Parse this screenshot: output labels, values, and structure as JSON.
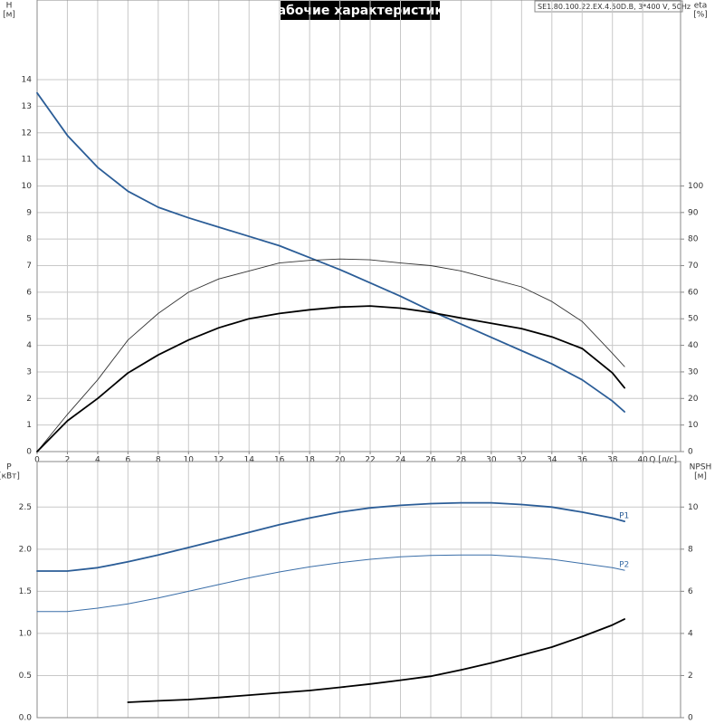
{
  "title": "Рабочие характеристики",
  "product": "SE1.80.100.22.EX.4.50D.B, 3*400 V, 50Hz",
  "chart_data": [
    {
      "type": "line",
      "ylabel": [
        "H",
        "[м]"
      ],
      "y2label": [
        "eta",
        "[%]"
      ],
      "xlabel": "Q [л/с]",
      "x": [
        0,
        2,
        4,
        6,
        8,
        10,
        12,
        14,
        16,
        18,
        20,
        22,
        24,
        26,
        28,
        30,
        32,
        34,
        36,
        38,
        38.8
      ],
      "xlim": [
        0,
        42.5
      ],
      "xticks": [
        0,
        2,
        4,
        6,
        8,
        10,
        12,
        14,
        16,
        18,
        20,
        22,
        24,
        26,
        28,
        30,
        32,
        34,
        36,
        38,
        40
      ],
      "ylim": [
        0,
        17
      ],
      "yticks": [
        0,
        1,
        2,
        3,
        4,
        5,
        6,
        7,
        8,
        9,
        10,
        11,
        12,
        13,
        14
      ],
      "y2lim": [
        0,
        170
      ],
      "y2ticks": [
        0,
        10,
        20,
        30,
        40,
        50,
        60,
        70,
        80,
        90,
        100
      ],
      "grid": true,
      "series": [
        {
          "color": "#2b5d97",
          "values": [
            13.5,
            11.9,
            10.7,
            9.8,
            9.2,
            8.8,
            8.45,
            8.1,
            7.75,
            7.3,
            6.85,
            6.35,
            5.85,
            5.3,
            4.8,
            4.3,
            3.8,
            3.3,
            2.7,
            1.9,
            1.5
          ]
        },
        {
          "color": "#333333",
          "axis": "y2",
          "values": [
            0,
            14,
            27,
            42,
            52,
            60,
            65,
            68,
            71,
            72,
            72.5,
            72.2,
            71,
            70,
            68,
            65,
            62,
            56.5,
            49,
            37,
            32
          ]
        },
        {
          "color": "#000000",
          "axis": "y2",
          "values": [
            0,
            11.6,
            20,
            29.6,
            36.4,
            42,
            46.6,
            50,
            52,
            53.4,
            54.4,
            54.8,
            54,
            52.4,
            50.3,
            48.3,
            46.3,
            43.2,
            38.8,
            29.6,
            24
          ]
        }
      ]
    },
    {
      "type": "line",
      "ylabel": [
        "P",
        "[кВт]"
      ],
      "y2label": [
        "NPSH",
        "[м]"
      ],
      "x": [
        0,
        2,
        4,
        6,
        8,
        10,
        12,
        14,
        16,
        18,
        20,
        22,
        24,
        26,
        28,
        30,
        32,
        34,
        36,
        38,
        38.8
      ],
      "xlim": [
        0,
        42.5
      ],
      "ylim": [
        0,
        3.04
      ],
      "yticks": [
        {
          "value": 0,
          "label": "0.0"
        },
        0.5,
        {
          "value": 1,
          "label": "1.0"
        },
        1.5,
        {
          "value": 2,
          "label": "2.0"
        },
        2.5
      ],
      "y2lim": [
        0,
        12.16
      ],
      "y2ticks": [
        0,
        2,
        4,
        6,
        8,
        10
      ],
      "grid": true,
      "series": [
        {
          "name": "P1",
          "color": "#2b5d97",
          "values": [
            1.74,
            1.74,
            1.78,
            1.85,
            1.93,
            2.02,
            2.11,
            2.2,
            2.29,
            2.37,
            2.44,
            2.49,
            2.52,
            2.54,
            2.55,
            2.55,
            2.53,
            2.5,
            2.44,
            2.37,
            2.33
          ]
        },
        {
          "name": "P2",
          "color": "#3a6ea8",
          "values": [
            1.26,
            1.26,
            1.3,
            1.35,
            1.42,
            1.5,
            1.58,
            1.66,
            1.73,
            1.79,
            1.84,
            1.88,
            1.91,
            1.925,
            1.93,
            1.93,
            1.91,
            1.88,
            1.83,
            1.78,
            1.75
          ]
        },
        {
          "color": "#000000",
          "axis": "y2",
          "values": [
            null,
            null,
            null,
            0.73,
            0.8,
            0.86,
            0.96,
            1.07,
            1.18,
            1.29,
            1.44,
            1.6,
            1.78,
            1.97,
            2.27,
            2.6,
            2.97,
            3.35,
            3.85,
            4.4,
            4.68
          ]
        }
      ]
    }
  ]
}
